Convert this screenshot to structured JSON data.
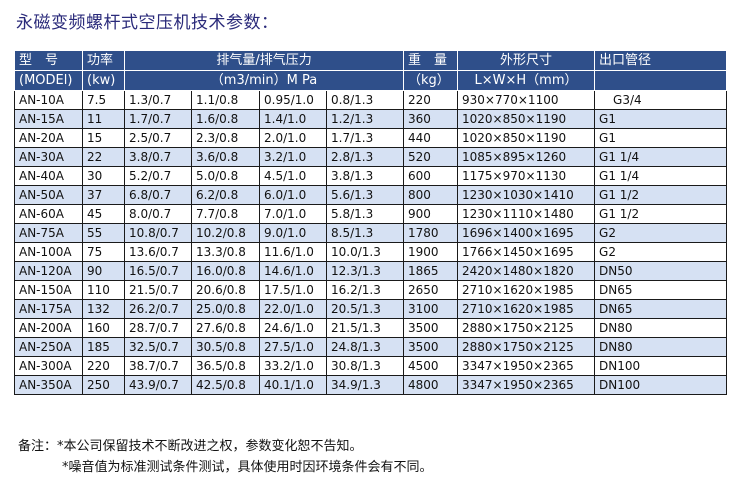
{
  "title": "永磁变频螺杆式空压机技术参数：",
  "header": {
    "model": "型　号",
    "model_sub": "(MODEl)",
    "power": "功率",
    "power_sub": "(kw)",
    "flow_pressure": "排气量/排气压力",
    "flow_pressure_sub": "（m3/min）M Pa",
    "weight": "重　量",
    "weight_sub": "（kg）",
    "dimensions": "外形尺寸",
    "dimensions_sub": "L×W×H（mm）",
    "outlet": "出口管径"
  },
  "rows": [
    [
      "AN-10A",
      "7.5",
      "1.3/0.7",
      "1.1/0.8",
      "0.95/1.0",
      "0.8/1.3",
      "220",
      "930×770×1100",
      "G3/4"
    ],
    [
      "AN-15A",
      "11",
      "1.7/0.7",
      "1.6/0.8",
      "1.4/1.0",
      "1.2/1.3",
      "360",
      "1020×850×1190",
      "G1"
    ],
    [
      "AN-20A",
      "15",
      "2.5/0.7",
      "2.3/0.8",
      "2.0/1.0",
      "1.7/1.3",
      "440",
      "1020×850×1190",
      "G1"
    ],
    [
      "AN-30A",
      "22",
      "3.8/0.7",
      "3.6/0.8",
      "3.2/1.0",
      "2.8/1.3",
      "520",
      "1085×895×1260",
      "G1 1/4"
    ],
    [
      "AN-40A",
      "30",
      "5.2/0.7",
      "5.0/0.8",
      "4.5/1.0",
      "3.8/1.3",
      "600",
      "1175×970×1130",
      "G1 1/4"
    ],
    [
      "AN-50A",
      "37",
      "6.8/0.7",
      "6.2/0.8",
      "6.0/1.0",
      "5.6/1.3",
      "800",
      "1230×1030×1410",
      "G1 1/2"
    ],
    [
      "AN-60A",
      "45",
      "8.0/0.7",
      "7.7/0.8",
      "7.0/1.0",
      "5.8/1.3",
      "900",
      "1230×1110×1480",
      "G1 1/2"
    ],
    [
      "AN-75A",
      "55",
      "10.8/0.7",
      "10.2/0.8",
      "9.0/1.0",
      "8.5/1.3",
      "1780",
      "1696×1400×1695",
      "G2"
    ],
    [
      "AN-100A",
      "75",
      "13.6/0.7",
      "13.3/0.8",
      "11.6/1.0",
      "10.0/1.3",
      "1900",
      "1766×1450×1695",
      "G2"
    ],
    [
      "AN-120A",
      "90",
      "16.5/0.7",
      "16.0/0.8",
      "14.6/1.0",
      "12.3/1.3",
      "1865",
      "2420×1480×1820",
      "DN50"
    ],
    [
      "AN-150A",
      "110",
      "21.5/0.7",
      "20.6/0.8",
      "17.5/1.0",
      "16.2/1.3",
      "2650",
      "2710×1620×1985",
      "DN65"
    ],
    [
      "AN-175A",
      "132",
      "26.2/0.7",
      "25.0/0.8",
      "22.0/1.0",
      "20.5/1.3",
      "3100",
      "2710×1620×1985",
      "DN65"
    ],
    [
      "AN-200A",
      "160",
      "28.7/0.7",
      "27.6/0.8",
      "24.6/1.0",
      "21.5/1.3",
      "3500",
      "2880×1750×2125",
      "DN80"
    ],
    [
      "AN-250A",
      "185",
      "32.5/0.7",
      "30.5/0.8",
      "27.5/1.0",
      "24.8/1.3",
      "3500",
      "2880×1750×2125",
      "DN80"
    ],
    [
      "AN-300A",
      "220",
      "38.7/0.7",
      "36.5/0.8",
      "33.2/1.0",
      "30.8/1.3",
      "4500",
      "3347×1950×2365",
      "DN100"
    ],
    [
      "AN-350A",
      "250",
      "43.9/0.7",
      "42.5/0.8",
      "40.1/1.0",
      "34.9/1.3",
      "4800",
      "3347×1950×2365",
      "DN100"
    ]
  ],
  "notes": {
    "line1": "备注：*本公司保留技术不断改进之权，参数变化恕不告知。",
    "line2": "*噪音值为标准测试条件测试，具体使用时因环境条件会有不同。"
  }
}
